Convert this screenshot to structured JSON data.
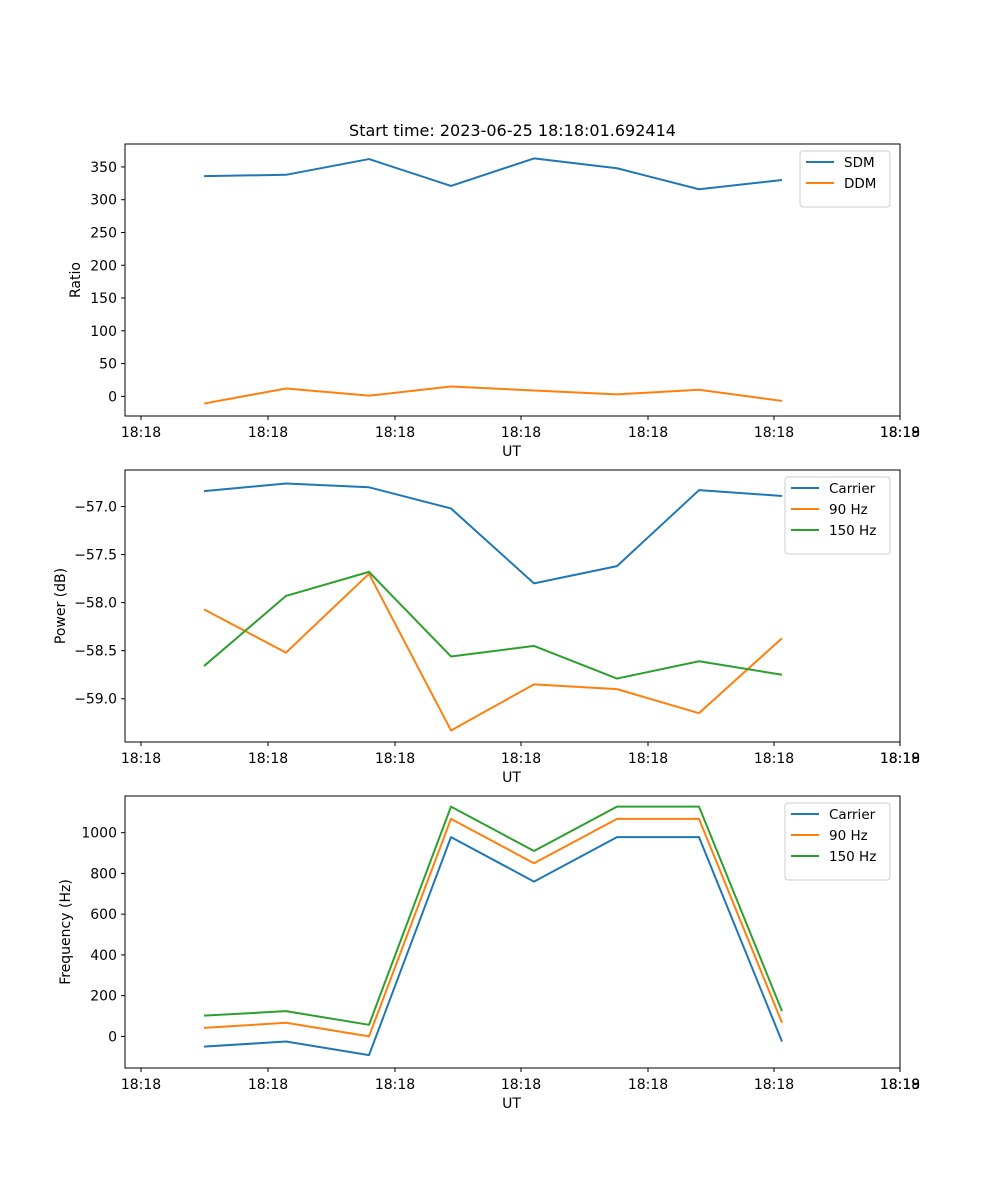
{
  "chart_data": [
    {
      "type": "line",
      "title": "Start time: 2023-06-25 18:18:01.692414",
      "xlabel": "UT",
      "ylabel": "Ratio",
      "x_ticks": [
        "18:18",
        "18:18",
        "18:18",
        "18:18",
        "18:18",
        "18:18",
        "18:18",
        "18:19"
      ],
      "ylim": [
        -30,
        385
      ],
      "y_ticks": [
        0,
        50,
        100,
        150,
        200,
        250,
        300,
        350
      ],
      "y_tick_labels": [
        "0",
        "50",
        "100",
        "150",
        "200",
        "250",
        "300",
        "350"
      ],
      "legend_position": "top-right",
      "grid": false,
      "series": [
        {
          "name": "SDM",
          "color": "#1f77b4",
          "values": [
            336,
            338,
            362,
            321,
            363,
            348,
            316,
            330
          ]
        },
        {
          "name": "DDM",
          "color": "#ff7f0e",
          "values": [
            -11,
            12,
            1,
            15,
            9,
            3,
            10,
            -7
          ]
        }
      ]
    },
    {
      "type": "line",
      "title": "",
      "xlabel": "UT",
      "ylabel": "Power (dB)",
      "x_ticks": [
        "18:18",
        "18:18",
        "18:18",
        "18:18",
        "18:18",
        "18:18",
        "18:18",
        "18:19"
      ],
      "ylim": [
        -59.45,
        -56.62
      ],
      "y_ticks": [
        -59.0,
        -58.5,
        -58.0,
        -57.5,
        -57.0
      ],
      "y_tick_labels": [
        "−59.0",
        "−58.5",
        "−58.0",
        "−57.5",
        "−57.0"
      ],
      "legend_position": "top-right",
      "grid": false,
      "series": [
        {
          "name": "Carrier",
          "color": "#1f77b4",
          "values": [
            -56.84,
            -56.76,
            -56.8,
            -57.02,
            -57.8,
            -57.62,
            -56.83,
            -56.89
          ]
        },
        {
          "name": "90 Hz",
          "color": "#ff7f0e",
          "values": [
            -58.07,
            -58.52,
            -57.7,
            -59.33,
            -58.85,
            -58.9,
            -59.15,
            -58.37
          ]
        },
        {
          "name": "150 Hz",
          "color": "#2ca02c",
          "values": [
            -58.66,
            -57.93,
            -57.68,
            -58.56,
            -58.45,
            -58.79,
            -58.61,
            -58.75
          ]
        }
      ]
    },
    {
      "type": "line",
      "title": "",
      "xlabel": "UT",
      "ylabel": "Frequency (Hz)",
      "x_ticks": [
        "18:18",
        "18:18",
        "18:18",
        "18:18",
        "18:18",
        "18:18",
        "18:18",
        "18:19"
      ],
      "ylim": [
        -155,
        1180
      ],
      "y_ticks": [
        0,
        200,
        400,
        600,
        800,
        1000
      ],
      "y_tick_labels": [
        "0",
        "200",
        "400",
        "600",
        "800",
        "1000"
      ],
      "legend_position": "top-right",
      "grid": false,
      "series": [
        {
          "name": "Carrier",
          "color": "#1f77b4",
          "values": [
            -50,
            -25,
            -92,
            978,
            760,
            978,
            978,
            -25
          ]
        },
        {
          "name": "90 Hz",
          "color": "#ff7f0e",
          "values": [
            42,
            67,
            0,
            1068,
            850,
            1068,
            1068,
            67
          ]
        },
        {
          "name": "150 Hz",
          "color": "#2ca02c",
          "values": [
            102,
            124,
            57,
            1128,
            910,
            1128,
            1128,
            124
          ]
        }
      ]
    }
  ]
}
